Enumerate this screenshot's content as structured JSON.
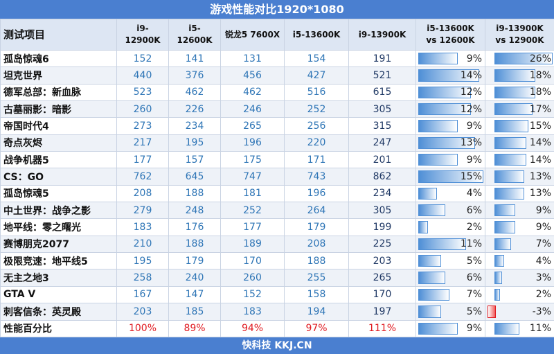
{
  "title": "游戏性能对比1920*1080",
  "table": {
    "header": [
      "测试项目",
      "i9-12900K",
      "i5-12600K",
      "锐龙5 7600X",
      "i5-13600K",
      "i9-13900K",
      "i5-13600K\nvs 12600K",
      "i9-13900K\nvs 12900K"
    ],
    "rows": [
      [
        "孤岛惊魂6",
        152,
        141,
        131,
        154,
        191,
        {
          "value": 9,
          "label": "9%"
        },
        {
          "value": 26,
          "label": "26%"
        }
      ],
      [
        "坦克世界",
        440,
        376,
        456,
        427,
        521,
        {
          "value": 14,
          "label": "14%"
        },
        {
          "value": 18,
          "label": "18%"
        }
      ],
      [
        "德军总部：新血脉",
        523,
        462,
        462,
        516,
        615,
        {
          "value": 12,
          "label": "12%"
        },
        {
          "value": 18,
          "label": "18%"
        }
      ],
      [
        "古墓丽影：暗影",
        260,
        226,
        246,
        252,
        305,
        {
          "value": 12,
          "label": "12%"
        },
        {
          "value": 17,
          "label": "17%"
        }
      ],
      [
        "帝国时代4",
        273,
        234,
        265,
        256,
        315,
        {
          "value": 9,
          "label": "9%"
        },
        {
          "value": 15,
          "label": "15%"
        }
      ],
      [
        "奇点灰烬",
        217,
        195,
        196,
        220,
        247,
        {
          "value": 13,
          "label": "13%"
        },
        {
          "value": 14,
          "label": "14%"
        }
      ],
      [
        "战争机器5",
        177,
        157,
        175,
        171,
        201,
        {
          "value": 9,
          "label": "9%"
        },
        {
          "value": 14,
          "label": "14%"
        }
      ],
      [
        "CS：GO",
        762,
        645,
        747,
        743,
        862,
        {
          "value": 15,
          "label": "15%"
        },
        {
          "value": 13,
          "label": "13%"
        }
      ],
      [
        "孤岛惊魂5",
        208,
        188,
        181,
        196,
        234,
        {
          "value": 4,
          "label": "4%"
        },
        {
          "value": 13,
          "label": "13%"
        }
      ],
      [
        "中土世界：战争之影",
        279,
        248,
        252,
        264,
        305,
        {
          "value": 6,
          "label": "6%"
        },
        {
          "value": 9,
          "label": "9%"
        }
      ],
      [
        "地平线：零之曙光",
        183,
        176,
        177,
        179,
        199,
        {
          "value": 2,
          "label": "2%"
        },
        {
          "value": 9,
          "label": "9%"
        }
      ],
      [
        "赛博朋克2077",
        210,
        188,
        189,
        208,
        225,
        {
          "value": 11,
          "label": "11%"
        },
        {
          "value": 7,
          "label": "7%"
        }
      ],
      [
        "极限竞速：地平线5",
        195,
        179,
        170,
        188,
        203,
        {
          "value": 5,
          "label": "5%"
        },
        {
          "value": 4,
          "label": "4%"
        }
      ],
      [
        "无主之地3",
        258,
        240,
        260,
        255,
        265,
        {
          "value": 6,
          "label": "6%"
        },
        {
          "value": 3,
          "label": "3%"
        }
      ],
      [
        "GTA V",
        167,
        147,
        152,
        158,
        170,
        {
          "value": 7,
          "label": "7%"
        },
        {
          "value": 2,
          "label": "2%"
        }
      ],
      [
        "刺客信条：英灵殿",
        203,
        185,
        183,
        194,
        197,
        {
          "value": 5,
          "label": "5%"
        },
        {
          "value": -3,
          "label": "-3%"
        }
      ],
      [
        "性能百分比",
        "100%",
        "89%",
        "94%",
        "97%",
        "111%",
        {
          "value": 9,
          "label": "9%"
        },
        {
          "value": 11,
          "label": "11%"
        }
      ]
    ]
  },
  "footer": "快科技 KKJ.CN"
}
